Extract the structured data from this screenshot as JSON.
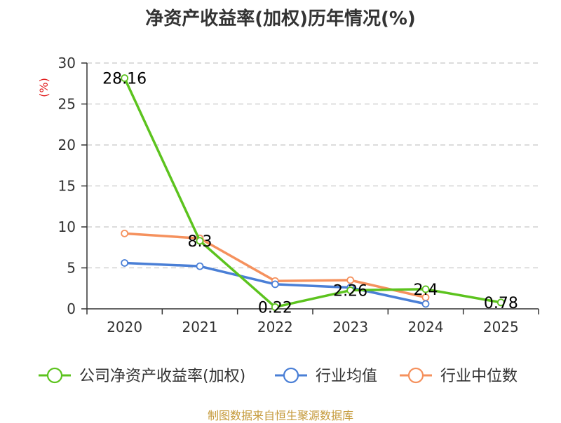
{
  "chart_data": {
    "type": "line",
    "title": "净资产收益率(加权)历年情况(%)",
    "ylabel": "(%)",
    "categories": [
      "2020",
      "2021",
      "2022",
      "2023",
      "2024",
      "2025"
    ],
    "ylim": [
      0,
      30
    ],
    "yticks": [
      0,
      5,
      10,
      15,
      20,
      25,
      30
    ],
    "ytick_labels": [
      "0",
      "5",
      "10",
      "15",
      "20",
      "25",
      "30"
    ],
    "series": [
      {
        "name": "公司净资产收益率(加权)",
        "color": "#5cc31e",
        "values": [
          28.16,
          8.3,
          0.22,
          2.26,
          2.4,
          0.78
        ],
        "labels": [
          "28.16",
          "8.3",
          "0.22",
          "2.26",
          "2.4",
          "0.78"
        ]
      },
      {
        "name": "行业均值",
        "color": "#4a7fd6",
        "values": [
          5.6,
          5.2,
          3.0,
          2.6,
          0.6,
          null
        ]
      },
      {
        "name": "行业中位数",
        "color": "#f5915d",
        "values": [
          9.2,
          8.6,
          3.4,
          3.5,
          1.4,
          null
        ]
      }
    ],
    "source": "制图数据来自恒生聚源数据库"
  }
}
